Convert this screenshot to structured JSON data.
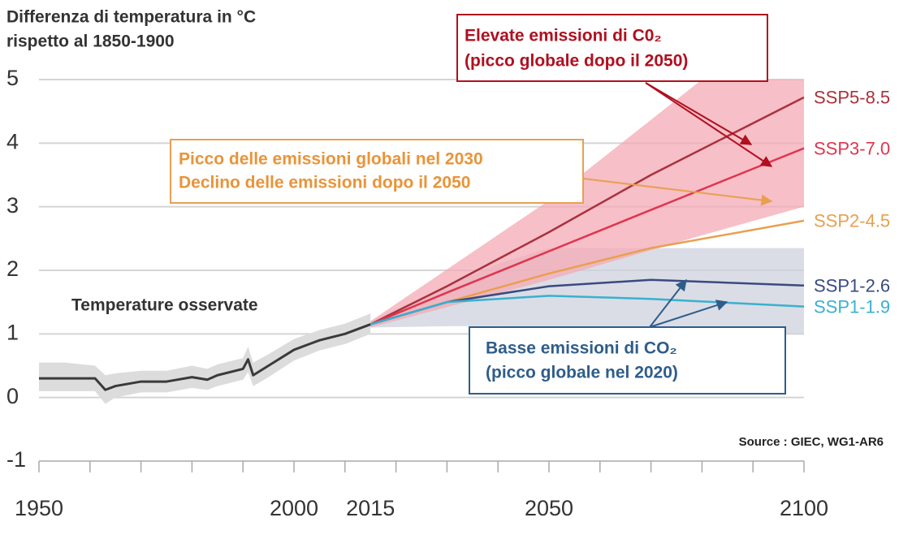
{
  "chart_data": {
    "type": "line",
    "title": [
      "Differenza di temperatura in °C",
      "rispetto al 1850-1900"
    ],
    "xlim": [
      1950,
      2100
    ],
    "ylim": [
      -1,
      5
    ],
    "xticks": [
      1950,
      2000,
      2015,
      2050,
      2100
    ],
    "xminor_ticks": [
      1950,
      1960,
      1970,
      1980,
      1990,
      2000,
      2010,
      2020,
      2030,
      2040,
      2050,
      2060,
      2070,
      2080,
      2090,
      2100
    ],
    "yticks": [
      5,
      4,
      3,
      2,
      1,
      0,
      -1
    ],
    "grid": true,
    "observed": {
      "name": "Temperature osservate",
      "color": "#3a3a3a",
      "x": [
        1950,
        1955,
        1961,
        1963,
        1965,
        1970,
        1975,
        1980,
        1983,
        1985,
        1990,
        1991,
        1992,
        1995,
        2000,
        2005,
        2010,
        2015
      ],
      "values": [
        0.3,
        0.3,
        0.3,
        0.12,
        0.18,
        0.25,
        0.25,
        0.32,
        0.28,
        0.35,
        0.45,
        0.6,
        0.35,
        0.5,
        0.75,
        0.9,
        1.0,
        1.15
      ],
      "lower": [
        0.1,
        0.1,
        0.1,
        -0.1,
        0.0,
        0.08,
        0.08,
        0.15,
        0.12,
        0.18,
        0.28,
        0.4,
        0.18,
        0.32,
        0.58,
        0.74,
        0.84,
        1.0
      ],
      "upper": [
        0.55,
        0.55,
        0.5,
        0.35,
        0.38,
        0.42,
        0.42,
        0.5,
        0.45,
        0.52,
        0.62,
        0.8,
        0.55,
        0.68,
        0.92,
        1.06,
        1.16,
        1.32
      ],
      "band_color": "#dcdcdc"
    },
    "bands": [
      {
        "color": "#cdd2dc",
        "x": [
          2015,
          2030,
          2040,
          2050,
          2100
        ],
        "lower": [
          1.1,
          1.12,
          1.12,
          1.1,
          1.0
        ],
        "upper": [
          1.2,
          1.75,
          2.1,
          2.35,
          2.35
        ]
      },
      {
        "color": "#f4a9b4",
        "x": [
          2015,
          2050,
          2080,
          2100
        ],
        "lower": [
          1.1,
          1.85,
          2.55,
          3.0
        ],
        "upper": [
          1.2,
          3.1,
          5.0,
          5.0
        ]
      }
    ],
    "series": [
      {
        "name": "SSP5-8.5",
        "color": "#a8323e",
        "x": [
          2015,
          2030,
          2050,
          2070,
          2100
        ],
        "values": [
          1.15,
          1.75,
          2.6,
          3.5,
          4.72
        ]
      },
      {
        "name": "SSP3-7.0",
        "color": "#e0344f",
        "x": [
          2015,
          2030,
          2050,
          2070,
          2100
        ],
        "values": [
          1.15,
          1.65,
          2.3,
          2.95,
          3.92
        ]
      },
      {
        "name": "SSP2-4.5",
        "color": "#e8a050",
        "x": [
          2015,
          2030,
          2050,
          2070,
          2100
        ],
        "values": [
          1.15,
          1.5,
          1.95,
          2.35,
          2.78
        ]
      },
      {
        "name": "SSP1-2.6",
        "color": "#3a4a80",
        "x": [
          2015,
          2030,
          2050,
          2070,
          2100
        ],
        "values": [
          1.15,
          1.5,
          1.75,
          1.85,
          1.76
        ]
      },
      {
        "name": "SSP1-1.9",
        "color": "#39b0d0",
        "x": [
          2015,
          2030,
          2050,
          2070,
          2100
        ],
        "values": [
          1.15,
          1.5,
          1.6,
          1.55,
          1.43
        ]
      }
    ],
    "annotations": {
      "high": [
        "Elevate emissioni di C0₂",
        "(picco globale dopo il 2050)"
      ],
      "mid": [
        "Picco delle emissioni globali nel 2030",
        "Declino delle emissioni dopo il 2050"
      ],
      "low": [
        "Basse emissioni di CO₂",
        "(picco globale nel 2020)"
      ],
      "source": "Source : GIEC, WG1-AR6"
    }
  }
}
